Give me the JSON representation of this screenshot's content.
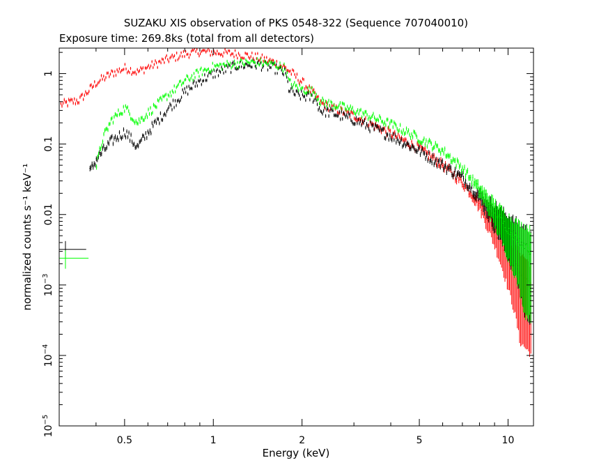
{
  "chart_data": {
    "type": "scatter",
    "title": "SUZAKU XIS observation of PKS 0548-322 (Sequence 707040010)",
    "subtitle": "Exposure time: 269.8ks (total from all detectors)",
    "xlabel": "Energy (keV)",
    "ylabel": "normalized counts s⁻¹ keV⁻¹",
    "x_scale": "log",
    "y_scale": "log",
    "xlim": [
      0.3,
      12.2
    ],
    "ylim": [
      1e-05,
      2.3
    ],
    "x_ticks": [
      {
        "value": 0.5,
        "label": "0.5"
      },
      {
        "value": 1,
        "label": "1"
      },
      {
        "value": 2,
        "label": "2"
      },
      {
        "value": 5,
        "label": "5"
      },
      {
        "value": 10,
        "label": "10"
      }
    ],
    "y_ticks": [
      {
        "value": 1,
        "mant": "1",
        "exp": ""
      },
      {
        "value": 0.1,
        "mant": "0.1",
        "exp": ""
      },
      {
        "value": 0.01,
        "mant": "0.01",
        "exp": ""
      },
      {
        "value": 0.001,
        "mant": "10",
        "exp": "−3"
      },
      {
        "value": 0.0001,
        "mant": "10",
        "exp": "−4"
      },
      {
        "value": 1e-05,
        "mant": "10",
        "exp": "−5"
      }
    ],
    "grid": false,
    "series": [
      {
        "color": "#ff0000",
        "scatter": 0.06,
        "spectrum": [
          [
            0.3,
            0.36
          ],
          [
            0.35,
            0.42
          ],
          [
            0.4,
            0.75
          ],
          [
            0.45,
            1.0
          ],
          [
            0.5,
            1.2
          ],
          [
            0.55,
            1.05
          ],
          [
            0.6,
            1.25
          ],
          [
            0.7,
            1.6
          ],
          [
            0.8,
            1.9
          ],
          [
            0.9,
            2.05
          ],
          [
            1.0,
            2.0
          ],
          [
            1.2,
            1.9
          ],
          [
            1.4,
            1.7
          ],
          [
            1.6,
            1.45
          ],
          [
            1.75,
            1.2
          ],
          [
            1.85,
            1.0
          ],
          [
            2.0,
            0.75
          ],
          [
            2.2,
            0.5
          ],
          [
            2.3,
            0.38
          ],
          [
            2.5,
            0.33
          ],
          [
            3.0,
            0.25
          ],
          [
            4.0,
            0.14
          ],
          [
            5.0,
            0.085
          ],
          [
            6.0,
            0.05
          ],
          [
            7.0,
            0.028
          ],
          [
            8.0,
            0.014
          ],
          [
            9.0,
            0.006
          ],
          [
            10.0,
            0.0026
          ],
          [
            11.0,
            0.0015
          ],
          [
            12.0,
            0.001
          ]
        ]
      },
      {
        "color": "#000000",
        "scatter": 0.07,
        "spectrum": [
          [
            0.38,
            0.04
          ],
          [
            0.4,
            0.062
          ],
          [
            0.45,
            0.11
          ],
          [
            0.5,
            0.15
          ],
          [
            0.55,
            0.09
          ],
          [
            0.6,
            0.15
          ],
          [
            0.7,
            0.32
          ],
          [
            0.8,
            0.55
          ],
          [
            0.9,
            0.8
          ],
          [
            1.0,
            1.0
          ],
          [
            1.2,
            1.3
          ],
          [
            1.4,
            1.35
          ],
          [
            1.6,
            1.2
          ],
          [
            1.75,
            1.0
          ],
          [
            1.8,
            0.6
          ],
          [
            1.9,
            0.5
          ],
          [
            2.0,
            0.48
          ],
          [
            2.2,
            0.45
          ],
          [
            2.3,
            0.3
          ],
          [
            2.5,
            0.28
          ],
          [
            3.0,
            0.22
          ],
          [
            4.0,
            0.13
          ],
          [
            5.0,
            0.08
          ],
          [
            6.0,
            0.05
          ],
          [
            7.0,
            0.033
          ],
          [
            8.0,
            0.018
          ],
          [
            9.0,
            0.01
          ],
          [
            10.0,
            0.006
          ],
          [
            11.0,
            0.004
          ],
          [
            12.0,
            0.003
          ]
        ]
      },
      {
        "color": "#00ff00",
        "scatter": 0.06,
        "spectrum": [
          [
            0.4,
            0.05
          ],
          [
            0.42,
            0.12
          ],
          [
            0.45,
            0.22
          ],
          [
            0.5,
            0.33
          ],
          [
            0.55,
            0.2
          ],
          [
            0.6,
            0.28
          ],
          [
            0.7,
            0.5
          ],
          [
            0.8,
            0.8
          ],
          [
            0.9,
            1.05
          ],
          [
            1.0,
            1.25
          ],
          [
            1.2,
            1.4
          ],
          [
            1.4,
            1.45
          ],
          [
            1.6,
            1.35
          ],
          [
            1.75,
            1.2
          ],
          [
            1.8,
            0.75
          ],
          [
            1.9,
            0.65
          ],
          [
            2.0,
            0.6
          ],
          [
            2.2,
            0.55
          ],
          [
            2.3,
            0.4
          ],
          [
            2.5,
            0.37
          ],
          [
            3.0,
            0.3
          ],
          [
            4.0,
            0.19
          ],
          [
            5.0,
            0.12
          ],
          [
            6.0,
            0.08
          ],
          [
            7.0,
            0.045
          ],
          [
            8.0,
            0.022
          ],
          [
            9.0,
            0.011
          ],
          [
            10.0,
            0.006
          ],
          [
            11.0,
            0.004
          ],
          [
            12.0,
            0.0032
          ]
        ]
      }
    ],
    "legend_markers": [
      {
        "color": "#000000",
        "x": 0.315,
        "y": 0.0032,
        "xerr": 0.02,
        "yerr_lo": 0.0024,
        "yerr_hi": 0.0042
      },
      {
        "color": "#00ff00",
        "x": 0.315,
        "y": 0.0024,
        "xerr": 0.024,
        "yerr_lo": 0.0017,
        "yerr_hi": 0.0031
      }
    ]
  }
}
